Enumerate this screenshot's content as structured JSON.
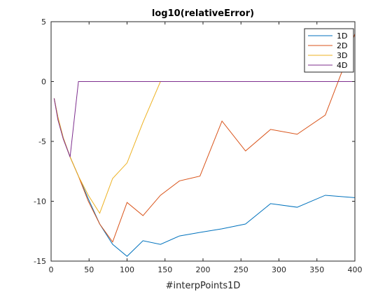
{
  "chart_data": {
    "type": "line",
    "title": "log10(relativeError)",
    "xlabel": "#interpPoints1D",
    "ylabel": "",
    "xlim": [
      0,
      400
    ],
    "ylim": [
      -15,
      5
    ],
    "xticks": [
      0,
      50,
      100,
      150,
      200,
      250,
      300,
      350,
      400
    ],
    "yticks": [
      5,
      0,
      -5,
      -10,
      -15
    ],
    "grid": false,
    "legend_position": "top-right",
    "series": [
      {
        "name": "1D",
        "color": "#0072BD",
        "points": [
          [
            4,
            -1.4
          ],
          [
            9,
            -3.0
          ],
          [
            16,
            -4.7
          ],
          [
            25,
            -6.3
          ],
          [
            36,
            -7.9
          ],
          [
            49,
            -9.8
          ],
          [
            64,
            -11.9
          ],
          [
            81,
            -13.6
          ],
          [
            100,
            -14.6
          ],
          [
            121,
            -13.3
          ],
          [
            144,
            -13.6
          ],
          [
            169,
            -12.9
          ],
          [
            196,
            -12.6
          ],
          [
            225,
            -12.3
          ],
          [
            256,
            -11.9
          ],
          [
            289,
            -10.2
          ],
          [
            324,
            -10.5
          ],
          [
            361,
            -9.5
          ],
          [
            400,
            -9.7
          ]
        ]
      },
      {
        "name": "2D",
        "color": "#D95319",
        "points": [
          [
            4,
            -1.4
          ],
          [
            9,
            -3.0
          ],
          [
            16,
            -4.7
          ],
          [
            25,
            -6.3
          ],
          [
            36,
            -7.9
          ],
          [
            49,
            -10.0
          ],
          [
            64,
            -11.9
          ],
          [
            81,
            -13.4
          ],
          [
            100,
            -10.1
          ],
          [
            121,
            -11.2
          ],
          [
            144,
            -9.5
          ],
          [
            169,
            -8.3
          ],
          [
            196,
            -7.9
          ],
          [
            225,
            -3.3
          ],
          [
            256,
            -5.8
          ],
          [
            289,
            -4.0
          ],
          [
            324,
            -4.4
          ],
          [
            361,
            -2.8
          ],
          [
            384,
            1.0
          ],
          [
            400,
            4.0
          ]
        ]
      },
      {
        "name": "3D",
        "color": "#EDB120",
        "points": [
          [
            4,
            -1.4
          ],
          [
            9,
            -3.0
          ],
          [
            16,
            -4.7
          ],
          [
            25,
            -6.3
          ],
          [
            36,
            -7.9
          ],
          [
            49,
            -9.5
          ],
          [
            64,
            -11.0
          ],
          [
            81,
            -8.1
          ],
          [
            100,
            -6.8
          ],
          [
            121,
            -3.4
          ],
          [
            144,
            0.0
          ],
          [
            400,
            0.0
          ]
        ]
      },
      {
        "name": "4D",
        "color": "#7E2F8E",
        "points": [
          [
            4,
            -1.4
          ],
          [
            9,
            -3.2
          ],
          [
            16,
            -4.8
          ],
          [
            25,
            -6.3
          ],
          [
            36,
            0.0
          ],
          [
            400,
            0.0
          ]
        ]
      }
    ]
  }
}
